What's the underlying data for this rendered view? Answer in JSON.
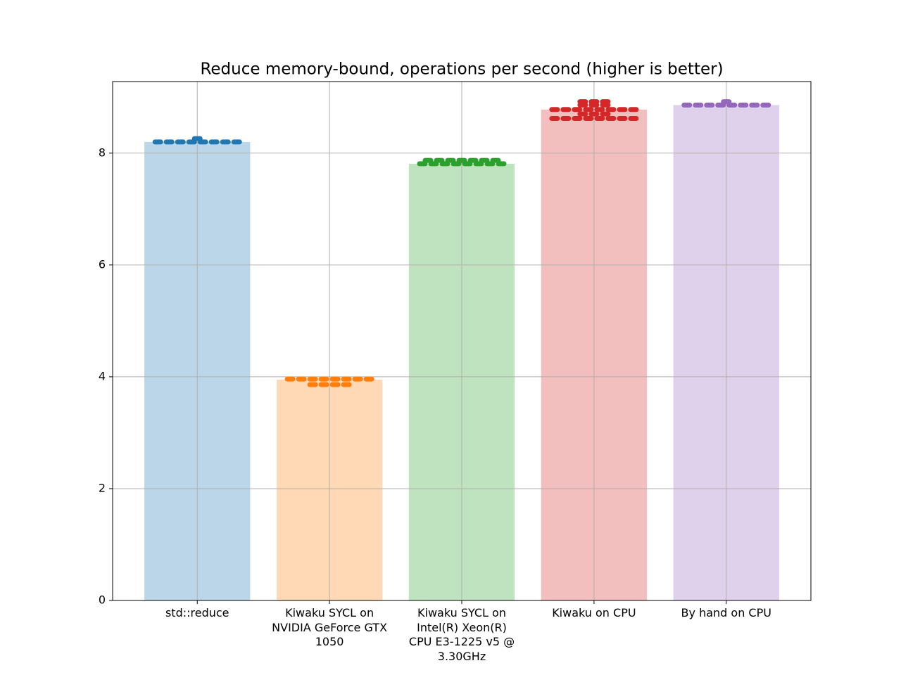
{
  "chart_data": {
    "type": "bar",
    "title": "Reduce memory-bound, operations per second (higher is better)",
    "categories": [
      "std::reduce",
      "Kiwaku SYCL on\nNVIDIA GeForce GTX\n1050",
      "Kiwaku SYCL on\nIntel(R) Xeon(R)\nCPU E3-1225 v5 @\n3.30GHz",
      "Kiwaku on CPU",
      "By hand on CPU"
    ],
    "values": [
      8.2,
      3.95,
      7.81,
      8.78,
      8.86
    ],
    "colors": [
      "#1f77b4",
      "#ff7f0e",
      "#2ca02c",
      "#d62728",
      "#9467bd"
    ],
    "samples": [
      [
        8.2,
        8.2,
        8.2,
        8.2,
        8.2,
        8.2,
        8.2,
        8.2,
        8.26
      ],
      [
        3.96,
        3.96,
        3.96,
        3.96,
        3.96,
        3.96,
        3.96,
        3.96,
        3.86,
        3.86,
        3.86,
        3.86
      ],
      [
        7.81,
        7.81,
        7.81,
        7.81,
        7.81,
        7.81,
        7.81,
        7.81,
        7.87,
        7.87,
        7.87,
        7.87,
        7.87,
        7.87,
        7.87
      ],
      [
        8.62,
        8.62,
        8.62,
        8.62,
        8.62,
        8.62,
        8.62,
        8.62,
        8.7,
        8.7,
        8.7,
        8.78,
        8.78,
        8.78,
        8.78,
        8.78,
        8.78,
        8.78,
        8.78,
        8.86,
        8.86,
        8.86,
        8.92,
        8.92,
        8.92
      ],
      [
        8.86,
        8.86,
        8.86,
        8.86,
        8.86,
        8.86,
        8.86,
        8.86,
        8.92
      ]
    ],
    "ylim": [
      0,
      9.28
    ],
    "yticks": [
      0,
      2,
      4,
      6,
      8
    ],
    "grid": true
  }
}
